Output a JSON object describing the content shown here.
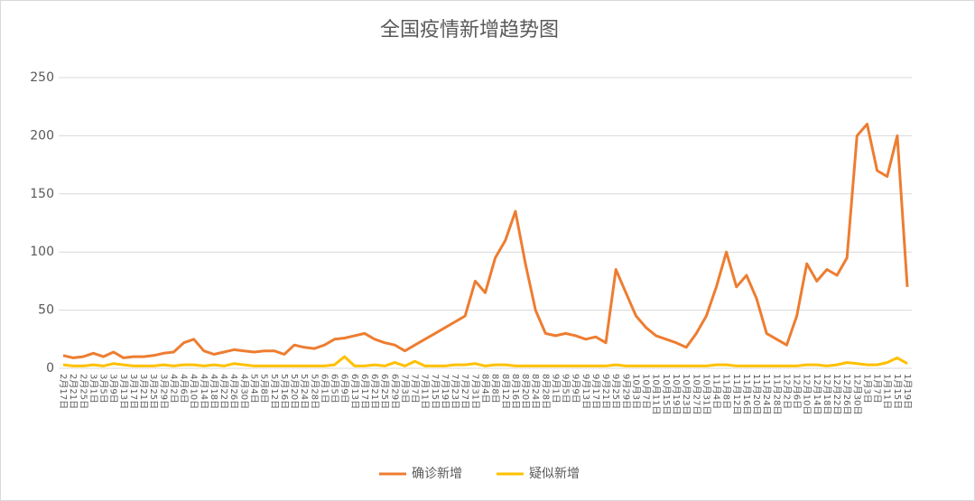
{
  "chart_data": {
    "type": "line",
    "title": "全国疫情新增趋势图",
    "categories": [
      "2月17日",
      "2月21日",
      "2月25日",
      "3月1日",
      "3月5日",
      "3月9日",
      "3月13日",
      "3月17日",
      "3月21日",
      "3月25日",
      "3月29日",
      "4月2日",
      "4月6日",
      "4月10日",
      "4月14日",
      "4月18日",
      "4月22日",
      "4月26日",
      "4月30日",
      "5月4日",
      "5月8日",
      "5月12日",
      "5月16日",
      "5月20日",
      "5月24日",
      "5月28日",
      "6月1日",
      "6月5日",
      "6月9日",
      "6月13日",
      "6月17日",
      "6月21日",
      "6月25日",
      "6月29日",
      "7月3日",
      "7月7日",
      "7月11日",
      "7月15日",
      "7月19日",
      "7月23日",
      "7月27日",
      "7月31日",
      "8月4日",
      "8月8日",
      "8月12日",
      "8月16日",
      "8月20日",
      "8月24日",
      "8月28日",
      "9月1日",
      "9月5日",
      "9月9日",
      "9月13日",
      "9月17日",
      "9月21日",
      "9月25日",
      "9月29日",
      "10月3日",
      "10月7日",
      "10月11日",
      "10月15日",
      "10月19日",
      "10月23日",
      "10月27日",
      "10月31日",
      "11月4日",
      "11月8日",
      "11月12日",
      "11月16日",
      "11月20日",
      "11月24日",
      "11月28日",
      "12月2日",
      "12月6日",
      "12月10日",
      "12月14日",
      "12月18日",
      "12月22日",
      "12月26日",
      "12月30日",
      "1月3日",
      "1月7日",
      "1月11日",
      "1月15日",
      "1月19日"
    ],
    "series": [
      {
        "name": "确诊新增",
        "color": "#ed7d31",
        "values": [
          11,
          9,
          10,
          13,
          10,
          14,
          9,
          10,
          10,
          11,
          13,
          14,
          22,
          25,
          15,
          12,
          14,
          16,
          15,
          14,
          15,
          15,
          12,
          20,
          18,
          17,
          20,
          25,
          26,
          28,
          30,
          25,
          22,
          20,
          15,
          20,
          25,
          30,
          35,
          40,
          45,
          75,
          65,
          95,
          110,
          135,
          90,
          50,
          30,
          28,
          30,
          28,
          25,
          27,
          22,
          85,
          65,
          45,
          35,
          28,
          25,
          22,
          18,
          30,
          45,
          70,
          100,
          70,
          80,
          60,
          30,
          25,
          20,
          45,
          90,
          75,
          85,
          80,
          95,
          200,
          210,
          170,
          165,
          200,
          70
        ]
      },
      {
        "name": "疑似新增",
        "color": "#ffc000",
        "values": [
          3,
          2,
          2,
          3,
          2,
          4,
          3,
          2,
          2,
          2,
          3,
          2,
          3,
          3,
          2,
          3,
          2,
          4,
          3,
          2,
          2,
          2,
          2,
          2,
          2,
          2,
          2,
          3,
          10,
          2,
          2,
          3,
          2,
          5,
          2,
          6,
          2,
          2,
          2,
          3,
          3,
          4,
          2,
          3,
          3,
          2,
          2,
          2,
          2,
          2,
          2,
          2,
          2,
          2,
          2,
          3,
          2,
          2,
          2,
          2,
          2,
          2,
          2,
          2,
          2,
          3,
          3,
          2,
          2,
          2,
          2,
          2,
          2,
          2,
          3,
          3,
          2,
          3,
          5,
          4,
          3,
          3,
          5,
          9,
          4
        ]
      }
    ],
    "ylim": [
      0,
      250
    ],
    "yticks": [
      0,
      50,
      100,
      150,
      200,
      250
    ],
    "grid": true,
    "legend": "bottom"
  }
}
